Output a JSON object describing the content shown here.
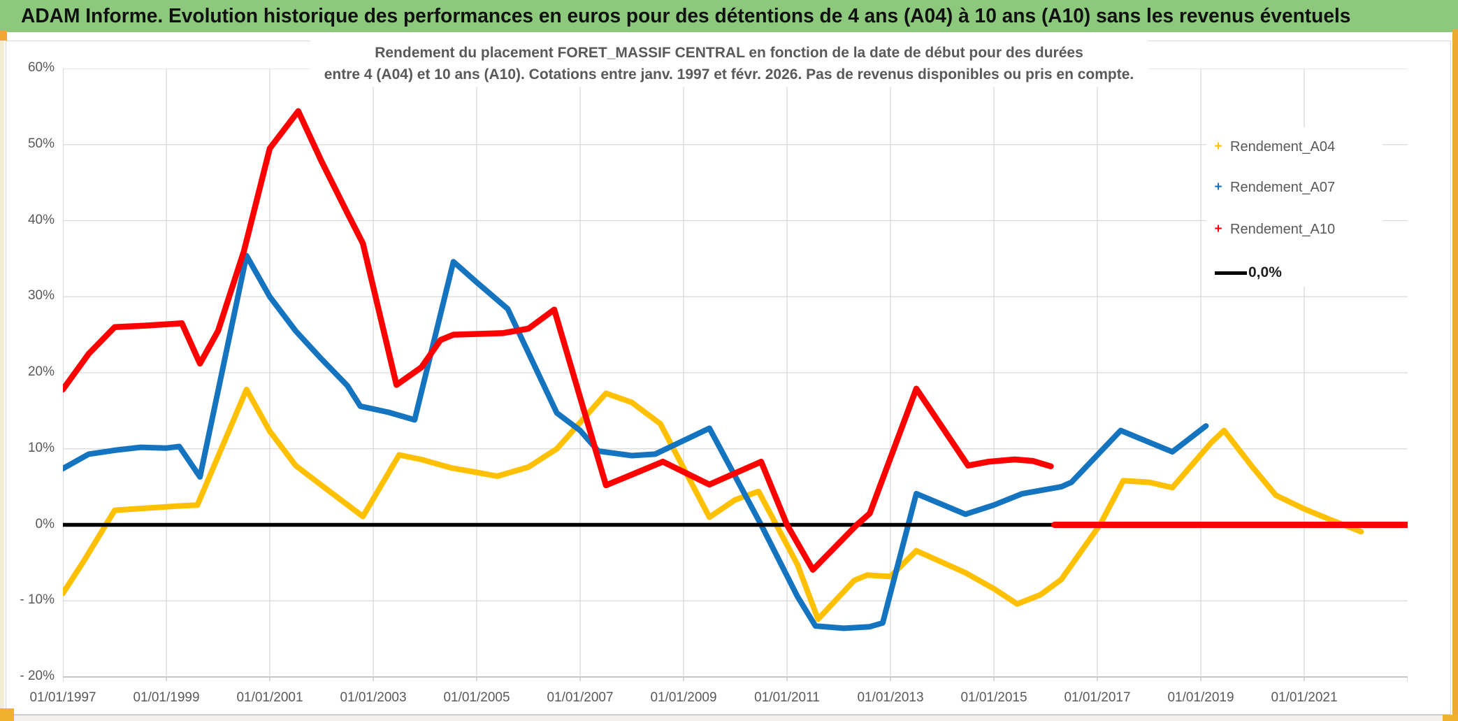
{
  "header": {
    "title": "ADAM Informe. Evolution historique des performances en euros pour des détentions de 4 ans (A04) à 10 ans (A10) sans les revenus éventuels"
  },
  "chart": {
    "title_line1": "Rendement du placement FORET_MASSIF CENTRAL en fonction de la date de début pour des durées",
    "title_line2": "entre 4 (A04) et 10 ans (A10). Cotations entre janv. 1997 et févr. 2026. Pas de revenus disponibles ou pris en compte."
  },
  "colors": {
    "header_green": "#8CC97C",
    "accent_orange": "#EFA933",
    "series_a04": "#FFC000",
    "series_a07": "#1574BF",
    "series_a10": "#FF0000",
    "zero_line": "#000000",
    "gridline": "#D9D9D9",
    "axis_text": "#595959"
  },
  "chart_data": {
    "type": "line",
    "title": "Rendement du placement FORET_MASSIF CENTRAL en fonction de la date de début pour des durées entre 4 (A04) et 10 ans (A10). Cotations entre janv. 1997 et févr. 2026. Pas de revenus disponibles ou pris en compte.",
    "x_axis": {
      "range_years": [
        1997.0,
        2023.0
      ],
      "gridline_step_years": 2,
      "ticks": [
        {
          "year": 1997,
          "label": "01/01/1997"
        },
        {
          "year": 1999,
          "label": "01/01/1999"
        },
        {
          "year": 2001,
          "label": "01/01/2001"
        },
        {
          "year": 2003,
          "label": "01/01/2003"
        },
        {
          "year": 2005,
          "label": "01/01/2005"
        },
        {
          "year": 2007,
          "label": "01/01/2007"
        },
        {
          "year": 2009,
          "label": "01/01/2009"
        },
        {
          "year": 2011,
          "label": "01/01/2011"
        },
        {
          "year": 2013,
          "label": "01/01/2013"
        },
        {
          "year": 2015,
          "label": "01/01/2015"
        },
        {
          "year": 2017,
          "label": "01/01/2017"
        },
        {
          "year": 2019,
          "label": "01/01/2019"
        },
        {
          "year": 2021,
          "label": "01/01/2021"
        }
      ]
    },
    "y_axis": {
      "range_pct": [
        -20,
        60
      ],
      "tick_step_pct": 10,
      "ticks": [
        {
          "value": 60,
          "label": "60%"
        },
        {
          "value": 50,
          "label": "50%"
        },
        {
          "value": 40,
          "label": "40%"
        },
        {
          "value": 30,
          "label": "30%"
        },
        {
          "value": 20,
          "label": "20%"
        },
        {
          "value": 10,
          "label": "10%"
        },
        {
          "value": 0,
          "label": "0%"
        },
        {
          "value": -10,
          "label": "- 10%"
        },
        {
          "value": -20,
          "label": "- 20%"
        }
      ]
    },
    "legend_position": "right-inside",
    "grid": true,
    "legend": [
      {
        "label": "Rendement_A04",
        "marker": "plus",
        "color": "#FFC000"
      },
      {
        "label": "Rendement_A07",
        "marker": "plus",
        "color": "#1574BF"
      },
      {
        "label": "Rendement_A10",
        "marker": "plus",
        "color": "#FF0000"
      },
      {
        "label": "0,0%",
        "marker": "line",
        "color": "#000000"
      }
    ],
    "series": [
      {
        "name": "Rendement_A04",
        "color": "#FFC000",
        "points": [
          [
            1997.0,
            -9.0
          ],
          [
            1997.4,
            -4.8
          ],
          [
            1998.0,
            1.9
          ],
          [
            1998.6,
            2.2
          ],
          [
            1999.3,
            2.5
          ],
          [
            1999.6,
            2.6
          ],
          [
            2000.0,
            9.0
          ],
          [
            2000.55,
            17.8
          ],
          [
            2001.0,
            12.3
          ],
          [
            2001.5,
            7.8
          ],
          [
            2002.0,
            5.2
          ],
          [
            2002.8,
            1.1
          ],
          [
            2003.5,
            9.2
          ],
          [
            2003.93,
            8.6
          ],
          [
            2004.5,
            7.5
          ],
          [
            2005.0,
            6.9
          ],
          [
            2005.4,
            6.4
          ],
          [
            2006.0,
            7.6
          ],
          [
            2006.55,
            10.0
          ],
          [
            2007.5,
            17.3
          ],
          [
            2008.0,
            16.1
          ],
          [
            2008.55,
            13.3
          ],
          [
            2009.5,
            1.0
          ],
          [
            2010.0,
            3.3
          ],
          [
            2010.45,
            4.4
          ],
          [
            2011.2,
            -5.2
          ],
          [
            2011.6,
            -12.4
          ],
          [
            2012.3,
            -7.3
          ],
          [
            2012.55,
            -6.6
          ],
          [
            2013.0,
            -6.8
          ],
          [
            2013.5,
            -3.4
          ],
          [
            2014.45,
            -6.3
          ],
          [
            2015.0,
            -8.4
          ],
          [
            2015.45,
            -10.4
          ],
          [
            2015.9,
            -9.2
          ],
          [
            2016.3,
            -7.2
          ],
          [
            2017.05,
            0.0
          ],
          [
            2017.5,
            5.8
          ],
          [
            2018.0,
            5.6
          ],
          [
            2018.45,
            4.9
          ],
          [
            2019.2,
            10.8
          ],
          [
            2019.45,
            12.4
          ],
          [
            2020.0,
            7.6
          ],
          [
            2020.45,
            3.9
          ],
          [
            2021.0,
            2.1
          ],
          [
            2021.5,
            0.7
          ],
          [
            2022.1,
            -0.9
          ]
        ]
      },
      {
        "name": "Rendement_A07",
        "color": "#1574BF",
        "points": [
          [
            1997.0,
            7.4
          ],
          [
            1997.5,
            9.3
          ],
          [
            1998.0,
            9.8
          ],
          [
            1998.5,
            10.2
          ],
          [
            1999.0,
            10.1
          ],
          [
            1999.25,
            10.3
          ],
          [
            1999.65,
            6.3
          ],
          [
            2000.55,
            35.4
          ],
          [
            2001.0,
            30.0
          ],
          [
            2001.5,
            25.5
          ],
          [
            2002.0,
            21.8
          ],
          [
            2002.5,
            18.3
          ],
          [
            2002.75,
            15.6
          ],
          [
            2003.3,
            14.8
          ],
          [
            2003.8,
            13.8
          ],
          [
            2004.55,
            34.6
          ],
          [
            2005.0,
            31.9
          ],
          [
            2005.6,
            28.4
          ],
          [
            2006.55,
            14.7
          ],
          [
            2007.0,
            12.4
          ],
          [
            2007.35,
            9.7
          ],
          [
            2008.0,
            9.1
          ],
          [
            2008.45,
            9.3
          ],
          [
            2009.5,
            12.7
          ],
          [
            2010.5,
            0.0
          ],
          [
            2011.2,
            -9.4
          ],
          [
            2011.55,
            -13.3
          ],
          [
            2012.1,
            -13.6
          ],
          [
            2012.6,
            -13.4
          ],
          [
            2012.85,
            -12.9
          ],
          [
            2013.5,
            4.1
          ],
          [
            2014.45,
            1.4
          ],
          [
            2015.0,
            2.6
          ],
          [
            2015.55,
            4.1
          ],
          [
            2016.3,
            5.0
          ],
          [
            2016.5,
            5.6
          ],
          [
            2017.45,
            12.4
          ],
          [
            2018.45,
            9.6
          ],
          [
            2019.1,
            13.0
          ]
        ]
      },
      {
        "name": "Rendement_A10",
        "color": "#FF0000",
        "points": [
          [
            1997.0,
            17.8
          ],
          [
            1997.5,
            22.5
          ],
          [
            1998.0,
            26.0
          ],
          [
            1998.6,
            26.2
          ],
          [
            1999.3,
            26.5
          ],
          [
            1999.65,
            21.2
          ],
          [
            2000.0,
            25.5
          ],
          [
            2000.5,
            36.0
          ],
          [
            2001.0,
            49.5
          ],
          [
            2001.55,
            54.4
          ],
          [
            2002.0,
            47.8
          ],
          [
            2002.5,
            41.0
          ],
          [
            2002.8,
            37.0
          ],
          [
            2003.45,
            18.4
          ],
          [
            2003.93,
            20.7
          ],
          [
            2004.3,
            24.3
          ],
          [
            2004.55,
            25.0
          ],
          [
            2005.5,
            25.2
          ],
          [
            2006.0,
            25.8
          ],
          [
            2006.5,
            28.3
          ],
          [
            2007.5,
            5.2
          ],
          [
            2008.0,
            6.6
          ],
          [
            2008.6,
            8.3
          ],
          [
            2009.5,
            5.3
          ],
          [
            2010.5,
            8.3
          ],
          [
            2011.0,
            0.0
          ],
          [
            2011.5,
            -5.9
          ],
          [
            2012.35,
            0.0
          ],
          [
            2012.6,
            1.5
          ],
          [
            2013.5,
            17.9
          ],
          [
            2014.5,
            7.8
          ],
          [
            2014.9,
            8.3
          ],
          [
            2015.4,
            8.6
          ],
          [
            2015.75,
            8.4
          ],
          [
            2016.1,
            7.7
          ]
        ],
        "zero_segment": [
          [
            2016.17,
            0.0
          ],
          [
            2023.0,
            0.0
          ]
        ]
      },
      {
        "name": "0,0%",
        "color": "#000000",
        "points": [
          [
            1997.0,
            0.0
          ],
          [
            2023.0,
            0.0
          ]
        ]
      }
    ]
  }
}
